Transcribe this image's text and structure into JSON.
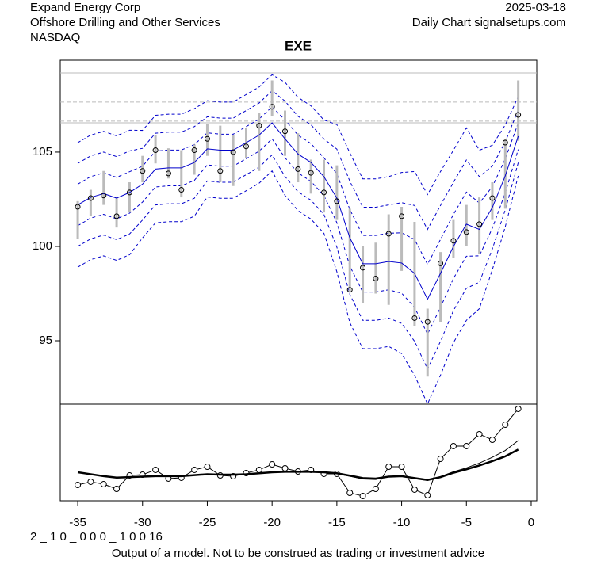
{
  "header": {
    "left": [
      "Expand Energy Corp",
      "Offshore Drilling and Other Services",
      "NASDAQ"
    ],
    "right": [
      "2025-03-18",
      "Daily Chart signalsetups.com"
    ]
  },
  "model_code": "2 _ 1 0 _ 0 0 0 _ 1 0 0   16",
  "footer": "Output of a model. Not to be construed as trading or investment advice",
  "chart_data": [
    {
      "type": "band",
      "title": "EXE",
      "x": [
        -35,
        -34,
        -33,
        -32,
        -31,
        -30,
        -29,
        -28,
        -27,
        -26,
        -25,
        -24,
        -23,
        -22,
        -21,
        -20,
        -19,
        -18,
        -17,
        -16,
        -15,
        -14,
        -13,
        -12,
        -11,
        -10,
        -9,
        -8,
        -7,
        -6,
        -5,
        -4,
        -3,
        -2,
        -1
      ],
      "close": [
        102.1,
        102.56,
        102.7,
        101.6,
        102.86,
        104.0,
        105.1,
        103.87,
        103.0,
        105.1,
        105.7,
        104.0,
        105.0,
        105.3,
        106.4,
        107.4,
        106.1,
        104.1,
        103.9,
        102.86,
        102.4,
        97.7,
        98.87,
        98.3,
        100.67,
        101.6,
        96.2,
        96.0,
        99.1,
        100.3,
        100.76,
        101.18,
        102.56,
        105.5,
        106.97
      ],
      "high": [
        102.4,
        103.0,
        104.0,
        102.6,
        103.4,
        104.8,
        105.9,
        105.2,
        105.1,
        105.4,
        106.5,
        106.4,
        105.9,
        106.3,
        107.1,
        108.8,
        107.2,
        106.0,
        104.6,
        104.6,
        104.3,
        102.0,
        100.0,
        100.2,
        101.7,
        102.1,
        101.3,
        96.7,
        99.7,
        101.4,
        102.2,
        102.6,
        103.4,
        105.7,
        108.8
      ],
      "low": [
        100.4,
        101.6,
        102.2,
        101.0,
        101.8,
        103.4,
        104.4,
        103.6,
        102.6,
        103.8,
        104.8,
        103.4,
        103.2,
        104.7,
        104.0,
        106.9,
        104.8,
        103.4,
        102.8,
        101.8,
        101.4,
        97.6,
        97.0,
        97.5,
        96.9,
        98.7,
        95.8,
        93.1,
        96.0,
        99.4,
        100.0,
        99.6,
        101.4,
        102.0,
        105.6
      ],
      "center": [
        102.2,
        102.6,
        102.8,
        102.56,
        102.86,
        103.3,
        104.1,
        104.16,
        104.16,
        104.45,
        105.17,
        105.1,
        105.1,
        105.5,
        105.9,
        106.55,
        105.7,
        104.9,
        104.45,
        103.7,
        102.56,
        100.46,
        99.08,
        99.08,
        99.2,
        99.12,
        98.57,
        97.2,
        98.57,
        100.0,
        101.18,
        100.9,
        102.06,
        103.74,
        105.84
      ],
      "band_width": [
        1.1,
        1.1,
        1.1,
        1.1,
        1.1,
        0.95,
        0.95,
        0.95,
        0.95,
        0.95,
        0.85,
        0.85,
        0.85,
        0.85,
        0.85,
        0.85,
        1.0,
        1.0,
        1.0,
        1.0,
        1.3,
        1.5,
        1.5,
        1.5,
        1.5,
        1.6,
        1.8,
        1.85,
        1.8,
        1.7,
        1.7,
        1.4,
        1.1,
        0.9,
        0.7
      ],
      "band_multiples": [
        -3,
        -2,
        -1,
        1,
        2,
        3
      ],
      "hlines": [
        {
          "value": 109.2,
          "style": "solid"
        },
        {
          "value": 107.65,
          "style": "dashed"
        },
        {
          "value": 106.64,
          "style": "dashed"
        },
        {
          "value": 106.55,
          "style": "solid"
        }
      ],
      "xlim": [
        -36.35,
        0.43
      ],
      "ylim": [
        91.64,
        109.87
      ],
      "xticks": [
        -35,
        -30,
        -25,
        -20,
        -15,
        -10,
        -5,
        0
      ],
      "yticks": [
        95,
        100,
        105
      ]
    },
    {
      "type": "line",
      "xlim": [
        -36.35,
        0.43
      ],
      "ylim": [
        0,
        100
      ],
      "x": [
        -35,
        -34,
        -33,
        -32,
        -31,
        -30,
        -29,
        -28,
        -27,
        -26,
        -25,
        -24,
        -23,
        -22,
        -21,
        -20,
        -19,
        -18,
        -17,
        -16,
        -15,
        -14,
        -13,
        -12,
        -11,
        -10,
        -9,
        -8,
        -7,
        -6,
        -5,
        -4,
        -3,
        -2,
        -1
      ],
      "series": [
        {
          "color": "#000",
          "width": 1,
          "markers": true,
          "values": [
            16.4,
            19.7,
            17.2,
            12.3,
            26.2,
            27.0,
            32.0,
            23.0,
            23.8,
            32.0,
            35.2,
            26.2,
            25.4,
            28.7,
            32.0,
            37.7,
            33.6,
            30.3,
            32.0,
            27.9,
            27.9,
            8.2,
            4.9,
            12.3,
            35.2,
            35.2,
            11.5,
            5.7,
            43.4,
            56.6,
            56.6,
            68.9,
            63.1,
            78.7,
            95.1
          ]
        },
        {
          "color": "#000",
          "width": 1,
          "markers": false,
          "values": [
            29.5,
            27.5,
            25.5,
            24.0,
            24.5,
            25.0,
            25.5,
            25.5,
            25.5,
            26.5,
            27.5,
            27.0,
            27.0,
            27.5,
            28.5,
            29.5,
            30.0,
            30.0,
            30.0,
            29.5,
            28.0,
            25.5,
            22.5,
            22.0,
            25.0,
            26.0,
            23.0,
            21.0,
            25.0,
            30.0,
            34.0,
            39.0,
            45.0,
            52.0,
            62.3
          ]
        },
        {
          "color": "#000",
          "width": 2.5,
          "markers": false,
          "values": [
            29.5,
            27.5,
            25.5,
            24.0,
            24.5,
            25.0,
            25.5,
            25.5,
            25.5,
            26.5,
            27.5,
            27.0,
            27.0,
            27.5,
            28.5,
            29.5,
            30.0,
            30.0,
            30.0,
            29.5,
            28.5,
            26.0,
            23.5,
            23.0,
            25.0,
            25.5,
            23.5,
            21.5,
            24.5,
            29.0,
            32.5,
            36.5,
            41.0,
            46.0,
            53.0
          ]
        }
      ]
    }
  ]
}
